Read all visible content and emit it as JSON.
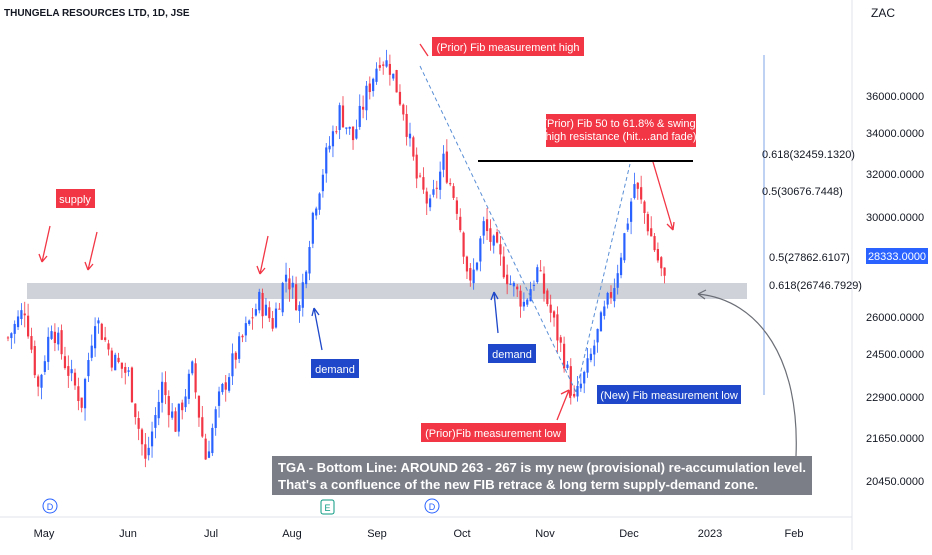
{
  "header": {
    "symbol_title": "THUNGELA RESOURCES LTD, 1D, JSE",
    "currency": "ZAC"
  },
  "price_axis": {
    "ticks": [
      "36000.0000",
      "34000.0000",
      "32000.0000",
      "30000.0000",
      "26000.0000",
      "24500.0000",
      "22900.0000",
      "21650.0000",
      "20450.0000"
    ],
    "current_price": "28333.0000"
  },
  "time_axis": {
    "ticks": [
      "May",
      "Jun",
      "Jul",
      "Aug",
      "Sep",
      "Oct",
      "Nov",
      "Dec",
      "2023",
      "Feb"
    ]
  },
  "fib_labels": {
    "new_0618": "0.618(32459.1320)",
    "new_05": "0.5(30676.7448)",
    "old_05": "0.5(27862.6107)",
    "old_0618": "0.618(26746.7929)"
  },
  "annotations": {
    "fib_high": "(Prior) Fib measurement high",
    "fib_retrace": "(Prior) Fib 50 to 61.8% & swing high resistance (hit....and fade)",
    "supply": "supply",
    "demand_left": "demand",
    "demand_mid": "demand",
    "new_fib_low": "(New) Fib measurement low",
    "prior_fib_low": "(Prior)Fib measurement low",
    "bottom_line_1": "TGA - Bottom Line: AROUND 263 - 267 is my new (provisional) re-accumulation level.",
    "bottom_line_2": "That's a confluence of the new FIB retrace & long term supply-demand zone."
  },
  "event_markers": [
    "D",
    "E",
    "D"
  ],
  "colors": {
    "up": "#2962ff",
    "down": "#f23645",
    "zone": "#cfd2d8",
    "label_red": "#f23645",
    "label_blue": "#1e48c9",
    "bottom_box": "#7b7d87"
  },
  "chart_data": {
    "type": "candlestick",
    "title": "THUNGELA RESOURCES LTD, 1D, JSE",
    "y_unit": "ZAC",
    "ylim": [
      19500,
      38500
    ],
    "x_ticks": [
      "May",
      "Jun",
      "Jul",
      "Aug",
      "Sep",
      "Oct",
      "Nov",
      "Dec",
      "2023",
      "Feb"
    ],
    "current_price": 28333,
    "support_zone": [
      26750,
      27400
    ],
    "resistance_line": 32600,
    "fib_levels": [
      {
        "label": "0.618",
        "value": 32459.132
      },
      {
        "label": "0.5",
        "value": 30676.7448
      },
      {
        "label": "0.5",
        "value": 27862.6107
      },
      {
        "label": "0.618",
        "value": 26746.7929
      }
    ],
    "swing_points": [
      {
        "name": "prior_fib_high",
        "date": "Sep 20",
        "value": 37600
      },
      {
        "name": "prior_fib_low",
        "date": "Nov 15",
        "value": 23100
      },
      {
        "name": "swing_high",
        "date": "Dec 1",
        "value": 32450
      }
    ],
    "legend": "none",
    "grid": false
  }
}
